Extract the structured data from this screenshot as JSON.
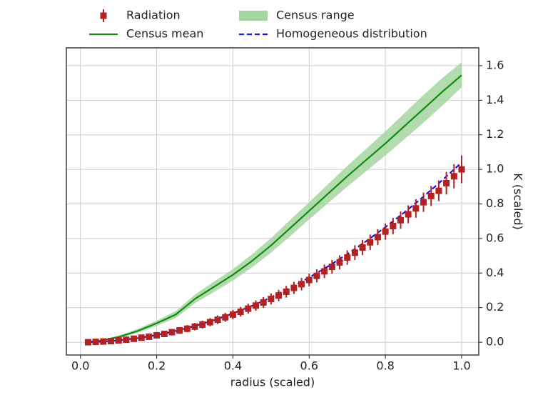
{
  "chart_data": {
    "type": "line",
    "xlabel": "radius (scaled)",
    "ylabel": "K (scaled)",
    "xlim": [
      -0.037,
      1.045
    ],
    "ylim": [
      -0.074,
      1.703
    ],
    "xticks": [
      {
        "value": 0,
        "label": "0.0"
      },
      0.2,
      0.4,
      0.6,
      0.8,
      {
        "value": 1,
        "label": "1.0"
      }
    ],
    "yticks": [
      {
        "value": 0,
        "label": "0.0"
      },
      0.2,
      0.4,
      0.6,
      0.8,
      {
        "value": 1,
        "label": "1.0"
      },
      1.2,
      1.4,
      1.6
    ],
    "grid": true,
    "legend": "top",
    "series": [
      {
        "name": "Radiation",
        "kind": "errorbar",
        "color": "#b22222",
        "x": [
          0.02,
          0.04,
          0.06,
          0.08,
          0.1,
          0.12,
          0.14,
          0.16,
          0.18,
          0.2,
          0.22,
          0.24,
          0.26,
          0.28,
          0.3,
          0.32,
          0.34,
          0.36,
          0.38,
          0.4,
          0.42,
          0.44,
          0.46,
          0.48,
          0.5,
          0.52,
          0.54,
          0.56,
          0.58,
          0.6,
          0.62,
          0.64,
          0.66,
          0.68,
          0.7,
          0.72,
          0.74,
          0.76,
          0.78,
          0.8,
          0.82,
          0.84,
          0.86,
          0.88,
          0.9,
          0.92,
          0.94,
          0.96,
          0.98,
          1.0
        ],
        "values": [
          0.0,
          0.002,
          0.004,
          0.006,
          0.01,
          0.014,
          0.02,
          0.026,
          0.032,
          0.04,
          0.048,
          0.058,
          0.068,
          0.078,
          0.09,
          0.102,
          0.116,
          0.13,
          0.144,
          0.16,
          0.176,
          0.194,
          0.212,
          0.23,
          0.25,
          0.27,
          0.292,
          0.314,
          0.336,
          0.36,
          0.384,
          0.41,
          0.436,
          0.462,
          0.49,
          0.518,
          0.548,
          0.578,
          0.608,
          0.64,
          0.672,
          0.706,
          0.74,
          0.774,
          0.81,
          0.846,
          0.876,
          0.92,
          0.96,
          1.0
        ],
        "errors": [
          0.01,
          0.01,
          0.01,
          0.012,
          0.012,
          0.013,
          0.014,
          0.015,
          0.016,
          0.017,
          0.018,
          0.019,
          0.02,
          0.021,
          0.022,
          0.023,
          0.024,
          0.025,
          0.026,
          0.027,
          0.028,
          0.029,
          0.03,
          0.031,
          0.032,
          0.033,
          0.034,
          0.035,
          0.036,
          0.037,
          0.038,
          0.039,
          0.04,
          0.041,
          0.042,
          0.043,
          0.044,
          0.045,
          0.046,
          0.047,
          0.048,
          0.05,
          0.052,
          0.054,
          0.056,
          0.058,
          0.06,
          0.065,
          0.07,
          0.08
        ]
      },
      {
        "name": "Census mean",
        "kind": "line",
        "color": "#138a13",
        "x": [
          0.02,
          0.05,
          0.1,
          0.15,
          0.2,
          0.25,
          0.3,
          0.35,
          0.4,
          0.45,
          0.5,
          0.55,
          0.6,
          0.65,
          0.7,
          0.75,
          0.8,
          0.85,
          0.9,
          0.95,
          1.0
        ],
        "values": [
          0.002,
          0.008,
          0.03,
          0.065,
          0.11,
          0.16,
          0.25,
          0.32,
          0.39,
          0.47,
          0.56,
          0.66,
          0.76,
          0.86,
          0.96,
          1.055,
          1.15,
          1.25,
          1.35,
          1.45,
          1.545
        ]
      },
      {
        "name": "Census range",
        "kind": "band",
        "color": "#a5d6a0",
        "x": [
          0.02,
          0.05,
          0.1,
          0.15,
          0.2,
          0.25,
          0.3,
          0.35,
          0.4,
          0.45,
          0.5,
          0.55,
          0.6,
          0.65,
          0.7,
          0.75,
          0.8,
          0.85,
          0.9,
          0.95,
          1.0
        ],
        "lower": [
          0.0,
          0.004,
          0.022,
          0.053,
          0.095,
          0.14,
          0.225,
          0.29,
          0.357,
          0.432,
          0.518,
          0.613,
          0.71,
          0.805,
          0.9,
          0.99,
          1.08,
          1.175,
          1.27,
          1.37,
          1.475
        ],
        "upper": [
          0.004,
          0.012,
          0.038,
          0.077,
          0.125,
          0.18,
          0.275,
          0.35,
          0.423,
          0.508,
          0.602,
          0.707,
          0.81,
          0.915,
          1.02,
          1.12,
          1.22,
          1.325,
          1.43,
          1.53,
          1.62
        ]
      },
      {
        "name": "Homogeneous distribution",
        "kind": "dashed",
        "color": "#1515dd",
        "x": [
          0.02,
          0.05,
          0.1,
          0.15,
          0.2,
          0.25,
          0.3,
          0.35,
          0.4,
          0.45,
          0.5,
          0.55,
          0.6,
          0.65,
          0.7,
          0.75,
          0.8,
          0.85,
          0.9,
          0.95,
          1.0
        ],
        "values": [
          0.0004,
          0.0026,
          0.0104,
          0.0234,
          0.0416,
          0.065,
          0.0936,
          0.1274,
          0.1664,
          0.2106,
          0.26,
          0.3146,
          0.3744,
          0.4394,
          0.5096,
          0.585,
          0.6656,
          0.7514,
          0.8424,
          0.9386,
          1.04
        ]
      }
    ]
  }
}
